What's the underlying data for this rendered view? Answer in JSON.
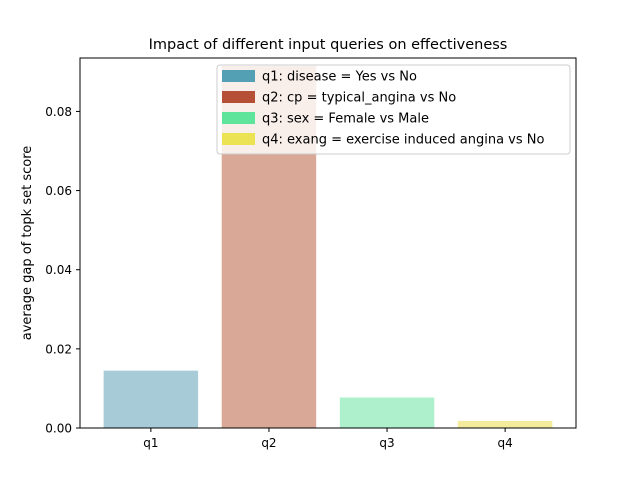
{
  "chart_data": {
    "type": "bar",
    "title": "Impact of different input queries on effectiveness",
    "xlabel": "",
    "ylabel": "average gap of topk set score",
    "categories": [
      "q1",
      "q2",
      "q3",
      "q4"
    ],
    "values": [
      0.0145,
      0.0915,
      0.0077,
      0.0018
    ],
    "ylim": [
      0.0,
      0.0935
    ],
    "yticks": [
      0.0,
      0.02,
      0.04,
      0.06,
      0.08
    ],
    "ytick_labels": [
      "0.00",
      "0.02",
      "0.04",
      "0.06",
      "0.08"
    ],
    "grid": false,
    "legend_position": "top-right",
    "bar_colors": [
      "#a8ccd7",
      "#d9a896",
      "#aef0cb",
      "#f4eb9d"
    ],
    "legend": [
      {
        "label": "q1: disease = Yes vs No",
        "color": "#539fb4"
      },
      {
        "label": "q2: cp = typical_angina vs No",
        "color": "#b54f36"
      },
      {
        "label": "q3: sex = Female vs Male",
        "color": "#5ee59b"
      },
      {
        "label": "q4: exang = exercise induced angina vs No",
        "color": "#ebe353"
      }
    ]
  }
}
